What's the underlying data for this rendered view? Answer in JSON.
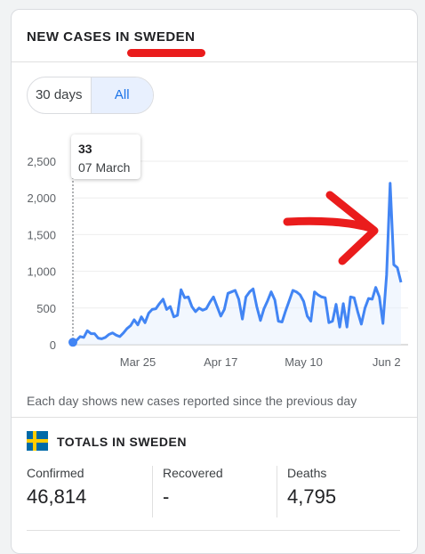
{
  "header": {
    "title": "NEW CASES IN SWEDEN"
  },
  "range_toggle": {
    "options": [
      "30 days",
      "All"
    ],
    "selected": "All"
  },
  "tooltip": {
    "value": "33",
    "date": "07 March"
  },
  "footnote": "Each day shows new cases reported since the previous day",
  "totals": {
    "title": "TOTALS IN SWEDEN",
    "flag_icon": "sweden-flag-icon",
    "stats": [
      {
        "label": "Confirmed",
        "value": "46,814"
      },
      {
        "label": "Recovered",
        "value": "-"
      },
      {
        "label": "Deaths",
        "value": "4,795"
      }
    ]
  },
  "colors": {
    "line": "#4285f4",
    "accent": "#1a73e8",
    "annotation": "#ea1c1c"
  },
  "chart_data": {
    "type": "line",
    "title": "",
    "xlabel": "",
    "ylabel": "",
    "ylim": [
      0,
      2500
    ],
    "yticks": [
      "0",
      "500",
      "1,000",
      "1,500",
      "2,000",
      "2,500"
    ],
    "xticks": [
      {
        "label": "Mar 25",
        "day": 18
      },
      {
        "label": "Apr 17",
        "day": 41
      },
      {
        "label": "May 10",
        "day": 64
      },
      {
        "label": "Jun 2",
        "day": 87
      }
    ],
    "x_start": "07 March",
    "values": [
      33,
      60,
      110,
      100,
      190,
      150,
      150,
      90,
      80,
      100,
      140,
      160,
      130,
      110,
      160,
      220,
      260,
      340,
      270,
      380,
      300,
      430,
      480,
      490,
      560,
      620,
      480,
      520,
      380,
      400,
      750,
      640,
      650,
      520,
      450,
      500,
      470,
      490,
      580,
      650,
      520,
      390,
      480,
      700,
      720,
      740,
      620,
      350,
      650,
      720,
      760,
      520,
      330,
      490,
      600,
      720,
      610,
      320,
      310,
      460,
      600,
      740,
      720,
      680,
      590,
      390,
      320,
      720,
      680,
      650,
      640,
      300,
      320,
      550,
      240,
      560,
      240,
      650,
      640,
      450,
      280,
      500,
      630,
      620,
      780,
      650,
      290,
      950,
      2200,
      1090,
      1050,
      850
    ]
  }
}
